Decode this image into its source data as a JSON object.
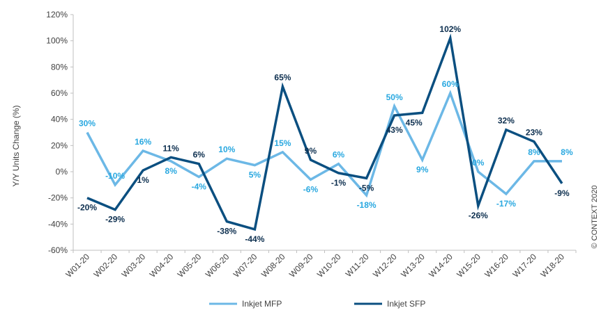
{
  "chart_data": {
    "type": "line",
    "categories": [
      "W01-20",
      "W02-20",
      "W03-20",
      "W04-20",
      "W05-20",
      "W06-20",
      "W07-20",
      "W08-20",
      "W09-20",
      "W10-20",
      "W11-20",
      "W12-20",
      "W13-20",
      "W14-20",
      "W15-20",
      "W16-20",
      "W17-20",
      "W18-20"
    ],
    "ylabel": "Y/Y Units Change (%)",
    "ylim": [
      -60,
      120
    ],
    "yticks": [
      "-60%",
      "-40%",
      "-20%",
      "0%",
      "20%",
      "40%",
      "60%",
      "80%",
      "100%",
      "120%"
    ],
    "grid": false,
    "legend_position": "bottom",
    "series": [
      {
        "name": "Inkjet MFP",
        "color": "#6cb8e6",
        "values": [
          30,
          -10,
          16,
          8,
          -4,
          10,
          5,
          15,
          -6,
          6,
          -18,
          50,
          9,
          60,
          0,
          -17,
          8,
          8
        ],
        "labels": [
          "30%",
          "-10%",
          "16%",
          "8%",
          "-4%",
          "10%",
          "5%",
          "15%",
          "-6%",
          "6%",
          "-18%",
          "50%",
          "9%",
          "60%",
          "0%",
          "-17%",
          "8%",
          "8%"
        ]
      },
      {
        "name": "Inkjet SFP",
        "color": "#0b4f80",
        "values": [
          -20,
          -29,
          1,
          11,
          6,
          -38,
          -44,
          65,
          9,
          -1,
          -5,
          43,
          45,
          102,
          -26,
          32,
          23,
          -9
        ],
        "labels": [
          "-20%",
          "-29%",
          "1%",
          "11%",
          "6%",
          "-38%",
          "-44%",
          "65%",
          "9%",
          "-1%",
          "-5%",
          "43%",
          "45%",
          "102%",
          "-26%",
          "32%",
          "23%",
          "-9%"
        ]
      }
    ],
    "annotation": "© CONTEXT 2020",
    "label_color_mfp": "#29a8e0",
    "label_color_sfp": "#0d2f4f"
  }
}
